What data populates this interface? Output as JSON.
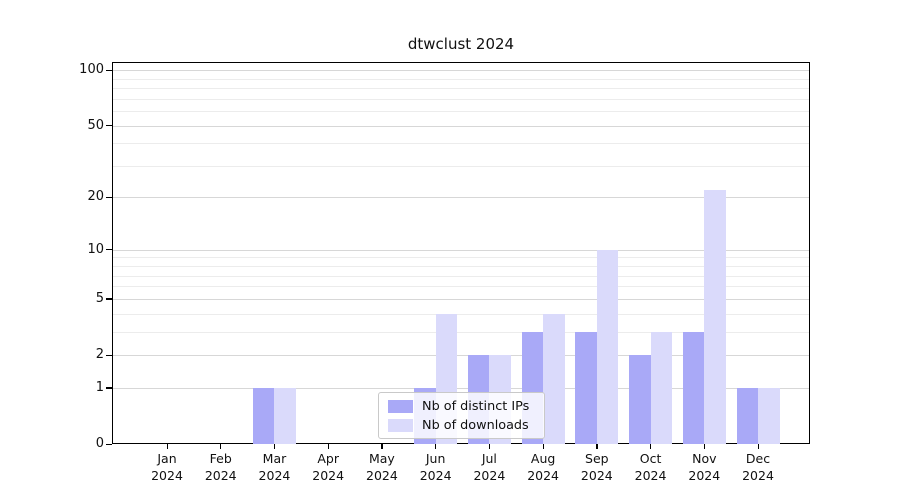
{
  "chart_data": {
    "type": "bar",
    "title": "dtwclust 2024",
    "categories": [
      "Jan",
      "Feb",
      "Mar",
      "Apr",
      "May",
      "Jun",
      "Jul",
      "Aug",
      "Sep",
      "Oct",
      "Nov",
      "Dec"
    ],
    "year_label": "2024",
    "series": [
      {
        "name": "Nb of distinct IPs",
        "color": "#a9a9f7",
        "values": [
          0,
          0,
          1,
          0,
          0,
          1,
          2,
          3,
          3,
          2,
          3,
          1
        ]
      },
      {
        "name": "Nb of downloads",
        "color": "#dadafb",
        "values": [
          0,
          0,
          1,
          0,
          0,
          4,
          2,
          4,
          10,
          3,
          22,
          1
        ]
      }
    ],
    "yscale": "log1p",
    "ylim": [
      0,
      111
    ],
    "y_tick_values": [
      0,
      1,
      2,
      5,
      10,
      20,
      50,
      100
    ],
    "y_gridline_values": [
      1,
      2,
      3,
      4,
      5,
      6,
      7,
      8,
      9,
      10,
      20,
      30,
      40,
      50,
      60,
      70,
      80,
      90,
      100
    ],
    "y_major_values": [
      1,
      2,
      5,
      10,
      20,
      50,
      100
    ],
    "grid": true,
    "legend_position": "lower-center",
    "axis_color": "#000000",
    "grid_major_color": "#d7d7d7",
    "grid_minor_color": "#ececec"
  }
}
